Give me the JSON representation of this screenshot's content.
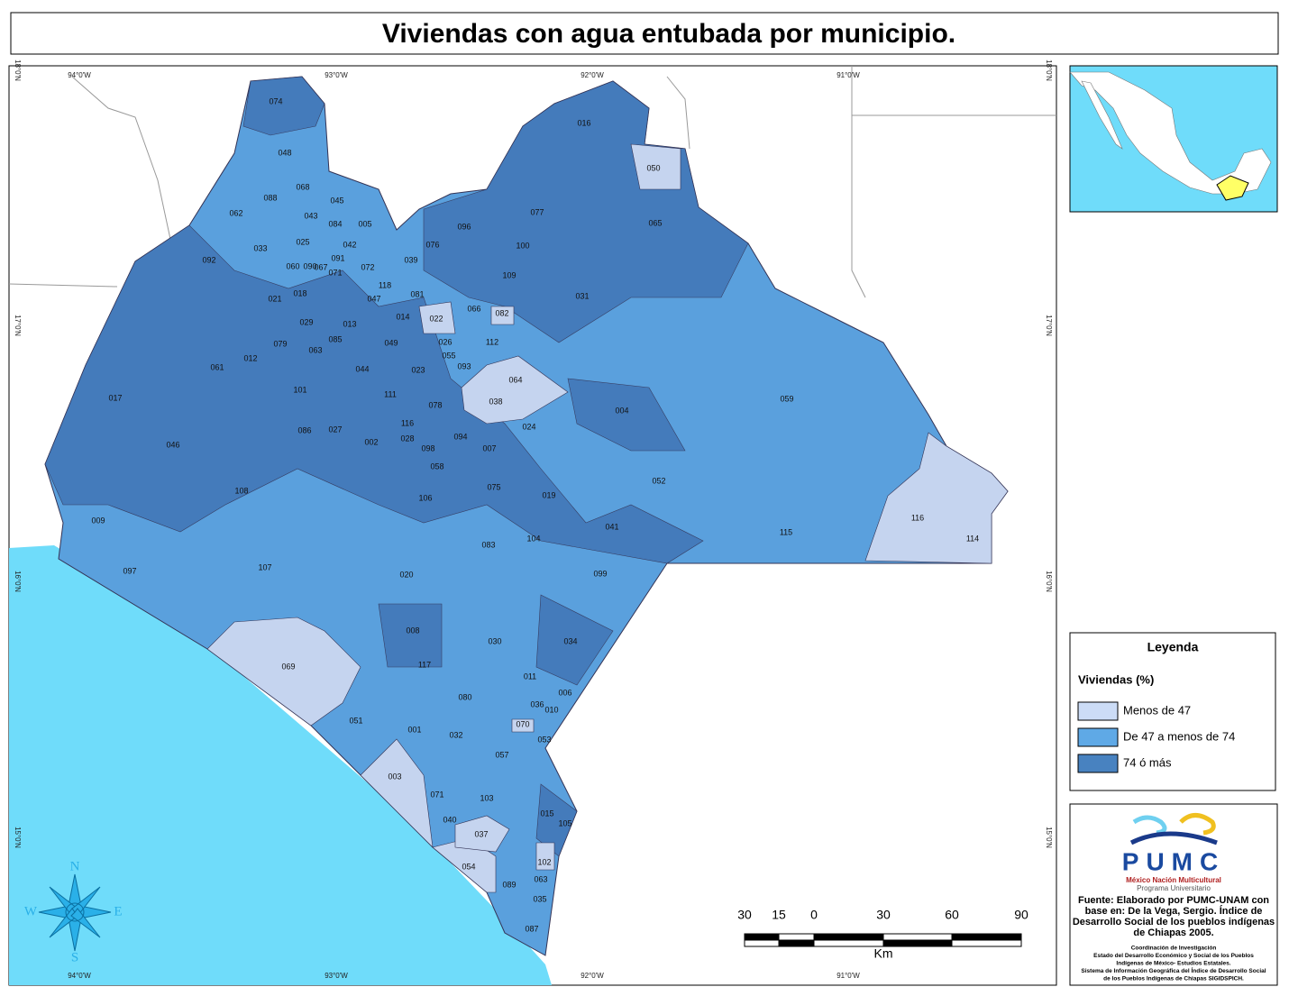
{
  "title": "Viviendas con agua entubada por municipio.",
  "graticule": {
    "lon": [
      "94°0'W",
      "93°0'W",
      "92°0'W",
      "91°0'W"
    ],
    "lat": [
      "18°0'N",
      "17°0'N",
      "16°0'N",
      "15°0'N"
    ]
  },
  "municipalities": [
    "074",
    "048",
    "068",
    "088",
    "045",
    "043",
    "084",
    "005",
    "062",
    "033",
    "025",
    "042",
    "092",
    "091",
    "060",
    "090",
    "067",
    "071",
    "072",
    "039",
    "076",
    "096",
    "100",
    "109",
    "077",
    "065",
    "016",
    "050",
    "118",
    "047",
    "081",
    "031",
    "021",
    "018",
    "014",
    "022",
    "066",
    "082",
    "029",
    "013",
    "079",
    "063",
    "085",
    "049",
    "026",
    "112",
    "055",
    "012",
    "061",
    "044",
    "023",
    "093",
    "064",
    "017",
    "101",
    "111",
    "038",
    "078",
    "004",
    "059",
    "024",
    "116",
    "028",
    "027",
    "086",
    "002",
    "094",
    "098",
    "007",
    "046",
    "058",
    "052",
    "075",
    "019",
    "108",
    "106",
    "009",
    "041",
    "116",
    "115",
    "114",
    "104",
    "083",
    "107",
    "097",
    "020",
    "099",
    "008",
    "117",
    "030",
    "034",
    "069",
    "011",
    "006",
    "080",
    "036",
    "010",
    "070",
    "051",
    "001",
    "032",
    "053",
    "057",
    "003",
    "071",
    "103",
    "040",
    "015",
    "105",
    "037",
    "102",
    "054",
    "089",
    "063",
    "035",
    "087"
  ],
  "compass": {
    "n": "N",
    "s": "S",
    "e": "E",
    "w": "W"
  },
  "scale_bar": {
    "labels": [
      "30",
      "15",
      "0",
      "30",
      "60",
      "90"
    ],
    "unit": "Km"
  },
  "legend": {
    "title": "Leyenda",
    "subtitle": "Viviendas (%)",
    "items": [
      {
        "label": "Menos de 47",
        "color": "#ccdcf6"
      },
      {
        "label": "De 47 a menos de 74",
        "color": "#5fa9e6"
      },
      {
        "label": "74 ó más",
        "color": "#4882c0"
      }
    ]
  },
  "credits": {
    "logo": "PUMC",
    "motto": "México Nación Multicultural",
    "program": "Programa Universitario",
    "source": [
      "Fuente: Elaborado por PUMC-UNAM con",
      "base en: De la Vega, Sergio. Índice de",
      "Desarrollo Social de los pueblos indígenas",
      "de Chiapas 2005."
    ],
    "notes": [
      "Coordinación de Investigación",
      "Estado del Desarrollo Económico y Social de los Pueblos",
      "Indígenas de México- Estudios Estatales.",
      "Sistema de Información Geográfica del Índice de Desarrollo Social",
      "de los Pueblos Indígenas de Chiapas SIGIDSPICH."
    ]
  }
}
